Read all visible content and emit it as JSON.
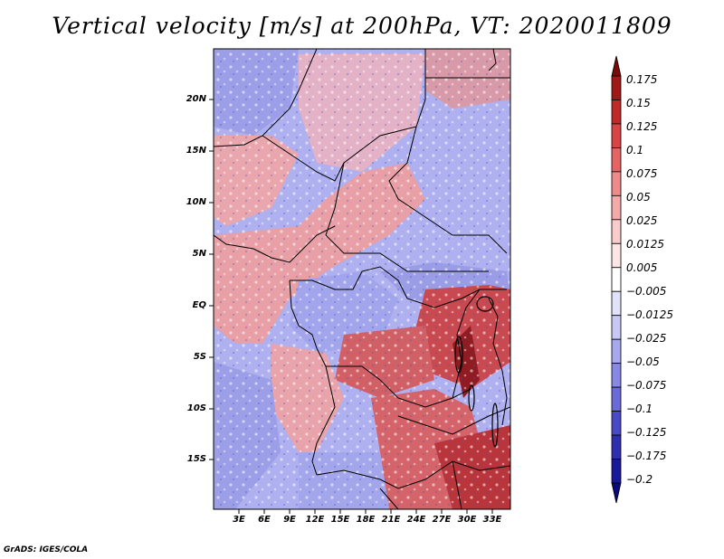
{
  "title": "Vertical velocity [m/s] at 200hPa, VT: 2020011809",
  "credit": "GrADS: IGES/COLA",
  "map": {
    "lat_ticks": [
      "20N",
      "15N",
      "10N",
      "5N",
      "EQ",
      "5S",
      "10S",
      "15S"
    ],
    "lon_ticks": [
      "3E",
      "6E",
      "9E",
      "12E",
      "15E",
      "18E",
      "21E",
      "24E",
      "27E",
      "30E",
      "33E"
    ]
  },
  "colorbar": {
    "labels": [
      "0.175",
      "0.15",
      "0.125",
      "0.1",
      "0.075",
      "0.05",
      "0.025",
      "0.0125",
      "0.005",
      "−0.005",
      "−0.0125",
      "−0.025",
      "−0.05",
      "−0.075",
      "−0.1",
      "−0.125",
      "−0.175",
      "−0.2"
    ],
    "colors": [
      "#7a0a0a",
      "#a11818",
      "#c22a2a",
      "#d94444",
      "#e56464",
      "#ee8a8a",
      "#f5aaaa",
      "#f9cccc",
      "#fce6e6",
      "#ffffff",
      "#e2e2fa",
      "#c8c8f5",
      "#a8a8ef",
      "#8888e6",
      "#6a6ad8",
      "#4a4ac8",
      "#2e2eb0",
      "#18189a",
      "#0a0a7a"
    ]
  }
}
